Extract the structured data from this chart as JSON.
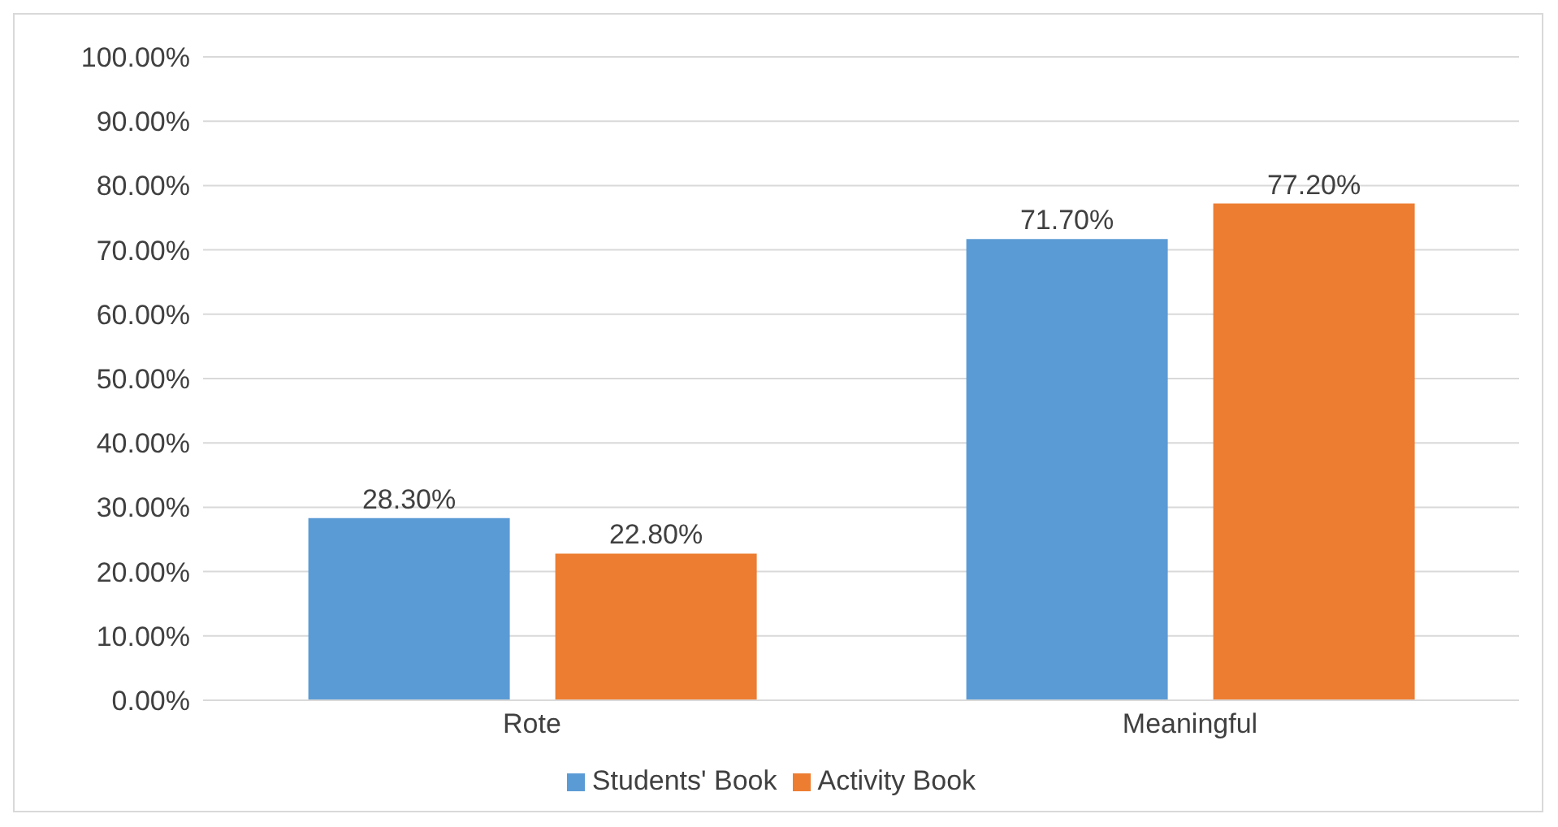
{
  "chart_data": {
    "type": "bar",
    "categories": [
      "Rote",
      "Meaningful"
    ],
    "series": [
      {
        "name": "Students' Book",
        "color": "#5b9bd5",
        "values": [
          28.3,
          71.7
        ],
        "value_labels": [
          "28.30%",
          "71.70%"
        ]
      },
      {
        "name": "Activity Book",
        "color": "#ed7d31",
        "values": [
          22.8,
          77.2
        ],
        "value_labels": [
          "22.80%",
          "77.20%"
        ]
      }
    ],
    "ylim": [
      0,
      100
    ],
    "yticks": [
      {
        "value": 0,
        "label": "0.00%"
      },
      {
        "value": 10,
        "label": "10.00%"
      },
      {
        "value": 20,
        "label": "20.00%"
      },
      {
        "value": 30,
        "label": "30.00%"
      },
      {
        "value": 40,
        "label": "40.00%"
      },
      {
        "value": 50,
        "label": "50.00%"
      },
      {
        "value": 60,
        "label": "60.00%"
      },
      {
        "value": 70,
        "label": "70.00%"
      },
      {
        "value": 80,
        "label": "80.00%"
      },
      {
        "value": 90,
        "label": "90.00%"
      },
      {
        "value": 100,
        "label": "100.00%"
      }
    ],
    "grid": "y",
    "legend": "bottom"
  }
}
